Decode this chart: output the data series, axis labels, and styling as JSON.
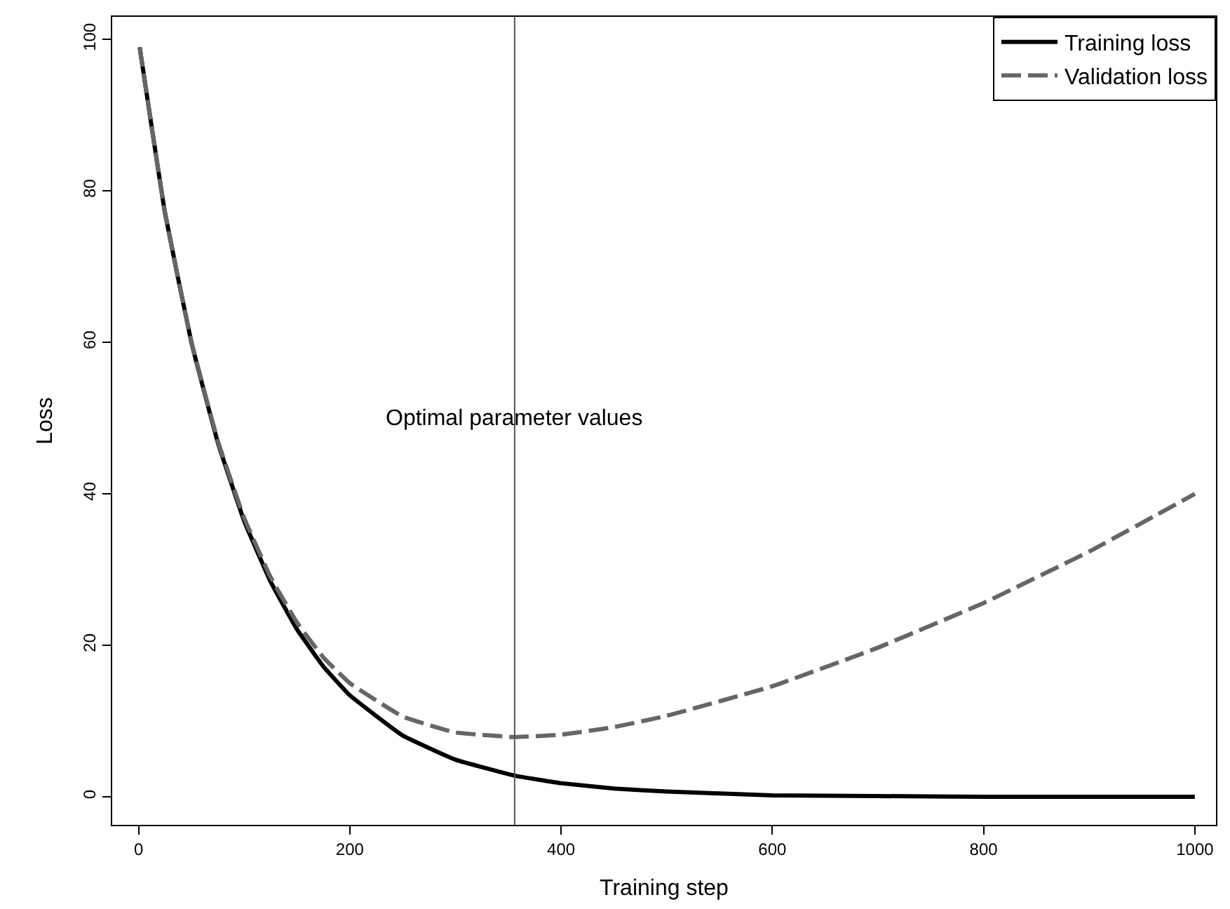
{
  "chart_data": {
    "type": "line",
    "xlabel": "Training step",
    "ylabel": "Loss",
    "xlim": [
      -25,
      1020
    ],
    "ylim": [
      -3.7,
      103
    ],
    "xticks": [
      0,
      200,
      400,
      600,
      800,
      1000
    ],
    "yticks": [
      0,
      20,
      40,
      60,
      80,
      100
    ],
    "grid": false,
    "legend": "top right",
    "marker": "none",
    "series": [
      {
        "name": "Training loss",
        "color": "#000000",
        "line_style": "solid",
        "x": [
          1,
          25,
          50,
          75,
          100,
          125,
          150,
          175,
          200,
          250,
          300,
          356,
          400,
          450,
          500,
          600,
          700,
          800,
          900,
          1000
        ],
        "values": [
          99,
          77.1,
          60.0,
          46.8,
          36.4,
          28.4,
          22.1,
          17.2,
          13.4,
          8.1,
          4.9,
          2.8,
          1.8,
          1.1,
          0.7,
          0.2,
          0.1,
          0,
          0,
          0
        ]
      },
      {
        "name": "Validation loss",
        "color": "#666666",
        "line_style": "dashed",
        "x": [
          1,
          25,
          50,
          75,
          100,
          125,
          150,
          175,
          200,
          250,
          300,
          356,
          400,
          450,
          500,
          600,
          700,
          800,
          900,
          1000
        ],
        "values": [
          99,
          77.1,
          60.1,
          47.0,
          36.8,
          29.0,
          23.0,
          18.4,
          15.0,
          10.6,
          8.5,
          7.9,
          8.2,
          9.2,
          10.7,
          14.6,
          19.7,
          25.6,
          32.4,
          40.0
        ]
      }
    ],
    "ref_lines": [
      {
        "axis": "x",
        "value": 356,
        "color": "#555555",
        "line_style": "solid"
      }
    ],
    "annotations": [
      {
        "text": "Optimal parameter values",
        "x": 356,
        "y": 50
      }
    ]
  }
}
